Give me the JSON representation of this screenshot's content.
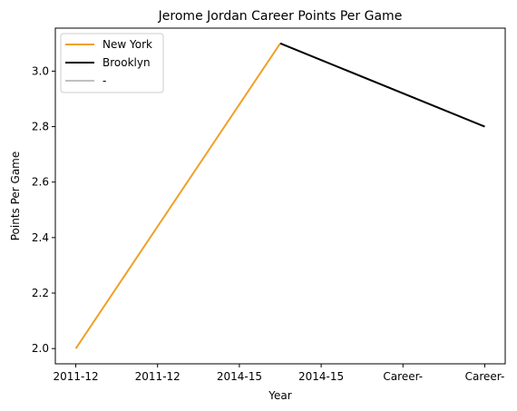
{
  "chart_data": {
    "type": "line",
    "title": "Jerome Jordan Career Points Per Game",
    "xlabel": "Year",
    "ylabel": "Points Per Game",
    "x_tick_labels": [
      "2011-12",
      "2011-12",
      "2014-15",
      "2014-15",
      "Career-",
      "Career-"
    ],
    "y_ticks": [
      2.0,
      2.2,
      2.4,
      2.6,
      2.8,
      3.0
    ],
    "y_tick_labels": [
      "2.0",
      "2.2",
      "2.4",
      "2.6",
      "2.8",
      "3.0"
    ],
    "xlim": [
      -0.25,
      5.25
    ],
    "ylim": [
      1.945,
      3.155
    ],
    "grid": false,
    "legend_position": "upper-left",
    "series": [
      {
        "name": "New York",
        "color": "#f0a028",
        "x": [
          0,
          2.5
        ],
        "y": [
          2.0,
          3.1
        ]
      },
      {
        "name": "Brooklyn",
        "color": "#000000",
        "x": [
          2.5,
          5
        ],
        "y": [
          3.1,
          2.8
        ]
      },
      {
        "name": "-",
        "color": "#c0c0c0",
        "x": [],
        "y": []
      }
    ]
  }
}
